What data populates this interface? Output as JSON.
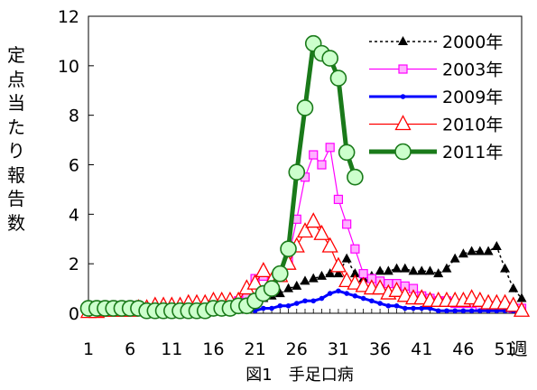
{
  "chart_data": {
    "type": "line",
    "title": "図1　手足口病",
    "ylabel_chars": [
      "定",
      "点",
      "当",
      "た",
      "り",
      "報",
      "告",
      "数"
    ],
    "x_unit_label": "週",
    "x_tick_labels": [
      "1",
      "6",
      "11",
      "16",
      "21",
      "26",
      "31",
      "36",
      "41",
      "46",
      "51"
    ],
    "y_tick_labels": [
      "0",
      "2",
      "4",
      "6",
      "8",
      "10",
      "12"
    ],
    "xlim": [
      1,
      53
    ],
    "ylim": [
      0,
      12
    ],
    "legend_position": "top-right",
    "series": [
      {
        "name": "2000年",
        "color": "#000000",
        "marker": "filled-triangle",
        "x": [
          1,
          2,
          3,
          4,
          5,
          6,
          7,
          8,
          9,
          10,
          11,
          12,
          13,
          14,
          15,
          16,
          17,
          18,
          19,
          20,
          21,
          22,
          23,
          24,
          25,
          26,
          27,
          28,
          29,
          30,
          31,
          32,
          33,
          34,
          35,
          36,
          37,
          38,
          39,
          40,
          41,
          42,
          43,
          44,
          45,
          46,
          47,
          48,
          49,
          50,
          51,
          52,
          53
        ],
        "values": [
          0.1,
          0.1,
          0.1,
          0.1,
          0.1,
          0.1,
          0.1,
          0.1,
          0.1,
          0.1,
          0.1,
          0.1,
          0.1,
          0.2,
          0.2,
          0.2,
          0.2,
          0.3,
          0.3,
          0.4,
          0.5,
          0.6,
          0.7,
          0.8,
          1.0,
          1.1,
          1.3,
          1.4,
          1.5,
          1.6,
          1.6,
          2.2,
          1.6,
          1.4,
          1.5,
          1.7,
          1.7,
          1.8,
          1.8,
          1.7,
          1.7,
          1.7,
          1.6,
          1.8,
          2.2,
          2.4,
          2.5,
          2.5,
          2.5,
          2.7,
          1.8,
          1.0,
          0.6
        ]
      },
      {
        "name": "2003年",
        "color": "#ff00ff",
        "marker": "square",
        "x": [
          1,
          2,
          3,
          4,
          5,
          6,
          7,
          8,
          9,
          10,
          11,
          12,
          13,
          14,
          15,
          16,
          17,
          18,
          19,
          20,
          21,
          22,
          23,
          24,
          25,
          26,
          27,
          28,
          29,
          30,
          31,
          32,
          33,
          34,
          35,
          36,
          37,
          38,
          39,
          40,
          41,
          42,
          43,
          44,
          45,
          46,
          47,
          48,
          49,
          50,
          51,
          52,
          53
        ],
        "values": [
          0.1,
          0.1,
          0.1,
          0.1,
          0.1,
          0.1,
          0.1,
          0.1,
          0.1,
          0.1,
          0.1,
          0.1,
          0.1,
          0.2,
          0.2,
          0.2,
          0.3,
          0.3,
          0.5,
          0.7,
          1.4,
          1.5,
          1.3,
          1.5,
          2.2,
          3.8,
          5.5,
          6.4,
          6.0,
          6.7,
          4.6,
          3.6,
          2.6,
          1.6,
          1.4,
          1.3,
          1.2,
          1.2,
          1.1,
          1.0,
          0.7,
          0.6,
          0.5,
          0.5,
          0.4,
          0.4,
          0.4,
          0.3,
          0.3,
          0.3,
          0.3,
          0.2,
          0.2
        ]
      },
      {
        "name": "2009年",
        "color": "#0000ff",
        "marker": "small-dot",
        "x": [
          1,
          2,
          3,
          4,
          5,
          6,
          7,
          8,
          9,
          10,
          11,
          12,
          13,
          14,
          15,
          16,
          17,
          18,
          19,
          20,
          21,
          22,
          23,
          24,
          25,
          26,
          27,
          28,
          29,
          30,
          31,
          32,
          33,
          34,
          35,
          36,
          37,
          38,
          39,
          40,
          41,
          42,
          43,
          44,
          45,
          46,
          47,
          48,
          49,
          50,
          51,
          52,
          53
        ],
        "values": [
          0.05,
          0.05,
          0.05,
          0.05,
          0.05,
          0.05,
          0.05,
          0.05,
          0.05,
          0.05,
          0.05,
          0.05,
          0.05,
          0.05,
          0.05,
          0.05,
          0.1,
          0.1,
          0.1,
          0.1,
          0.1,
          0.2,
          0.2,
          0.3,
          0.3,
          0.4,
          0.5,
          0.5,
          0.6,
          0.8,
          0.9,
          0.8,
          0.7,
          0.6,
          0.5,
          0.4,
          0.3,
          0.3,
          0.2,
          0.2,
          0.2,
          0.2,
          0.1,
          0.1,
          0.1,
          0.1,
          0.1,
          0.1,
          0.1,
          0.1,
          0.1,
          0.1,
          0.1
        ]
      },
      {
        "name": "2010年",
        "color": "#ff0000",
        "marker": "open-triangle",
        "x": [
          1,
          2,
          3,
          4,
          5,
          6,
          7,
          8,
          9,
          10,
          11,
          12,
          13,
          14,
          15,
          16,
          17,
          18,
          19,
          20,
          21,
          22,
          23,
          24,
          25,
          26,
          27,
          28,
          29,
          30,
          31,
          32,
          33,
          34,
          35,
          36,
          37,
          38,
          39,
          40,
          41,
          42,
          43,
          44,
          45,
          46,
          47,
          48,
          49,
          50,
          51,
          52,
          53
        ],
        "values": [
          0.05,
          0.05,
          0.1,
          0.1,
          0.1,
          0.1,
          0.2,
          0.2,
          0.3,
          0.3,
          0.3,
          0.3,
          0.4,
          0.4,
          0.4,
          0.5,
          0.5,
          0.5,
          0.5,
          1.0,
          1.2,
          1.7,
          1.3,
          1.5,
          2.0,
          2.7,
          3.3,
          3.7,
          3.2,
          2.7,
          1.9,
          1.3,
          1.2,
          1.1,
          1.0,
          1.0,
          0.8,
          0.9,
          0.7,
          0.6,
          0.6,
          0.5,
          0.5,
          0.5,
          0.5,
          0.5,
          0.6,
          0.5,
          0.4,
          0.4,
          0.4,
          0.3,
          0.1
        ]
      },
      {
        "name": "2011年",
        "color": "#008000",
        "line_color": "#1a7a1a",
        "marker": "large-circle",
        "x": [
          1,
          2,
          3,
          4,
          5,
          6,
          7,
          8,
          9,
          10,
          11,
          12,
          13,
          14,
          15,
          16,
          17,
          18,
          19,
          20,
          21,
          22,
          23,
          24,
          25,
          26,
          27,
          28,
          29,
          30,
          31,
          32,
          33
        ],
        "values": [
          0.2,
          0.2,
          0.2,
          0.2,
          0.2,
          0.2,
          0.2,
          0.1,
          0.1,
          0.1,
          0.1,
          0.1,
          0.1,
          0.1,
          0.1,
          0.2,
          0.2,
          0.2,
          0.3,
          0.3,
          0.5,
          0.8,
          1.0,
          1.6,
          2.6,
          5.7,
          8.3,
          10.9,
          10.5,
          10.3,
          9.5,
          6.5,
          5.5
        ]
      }
    ]
  }
}
